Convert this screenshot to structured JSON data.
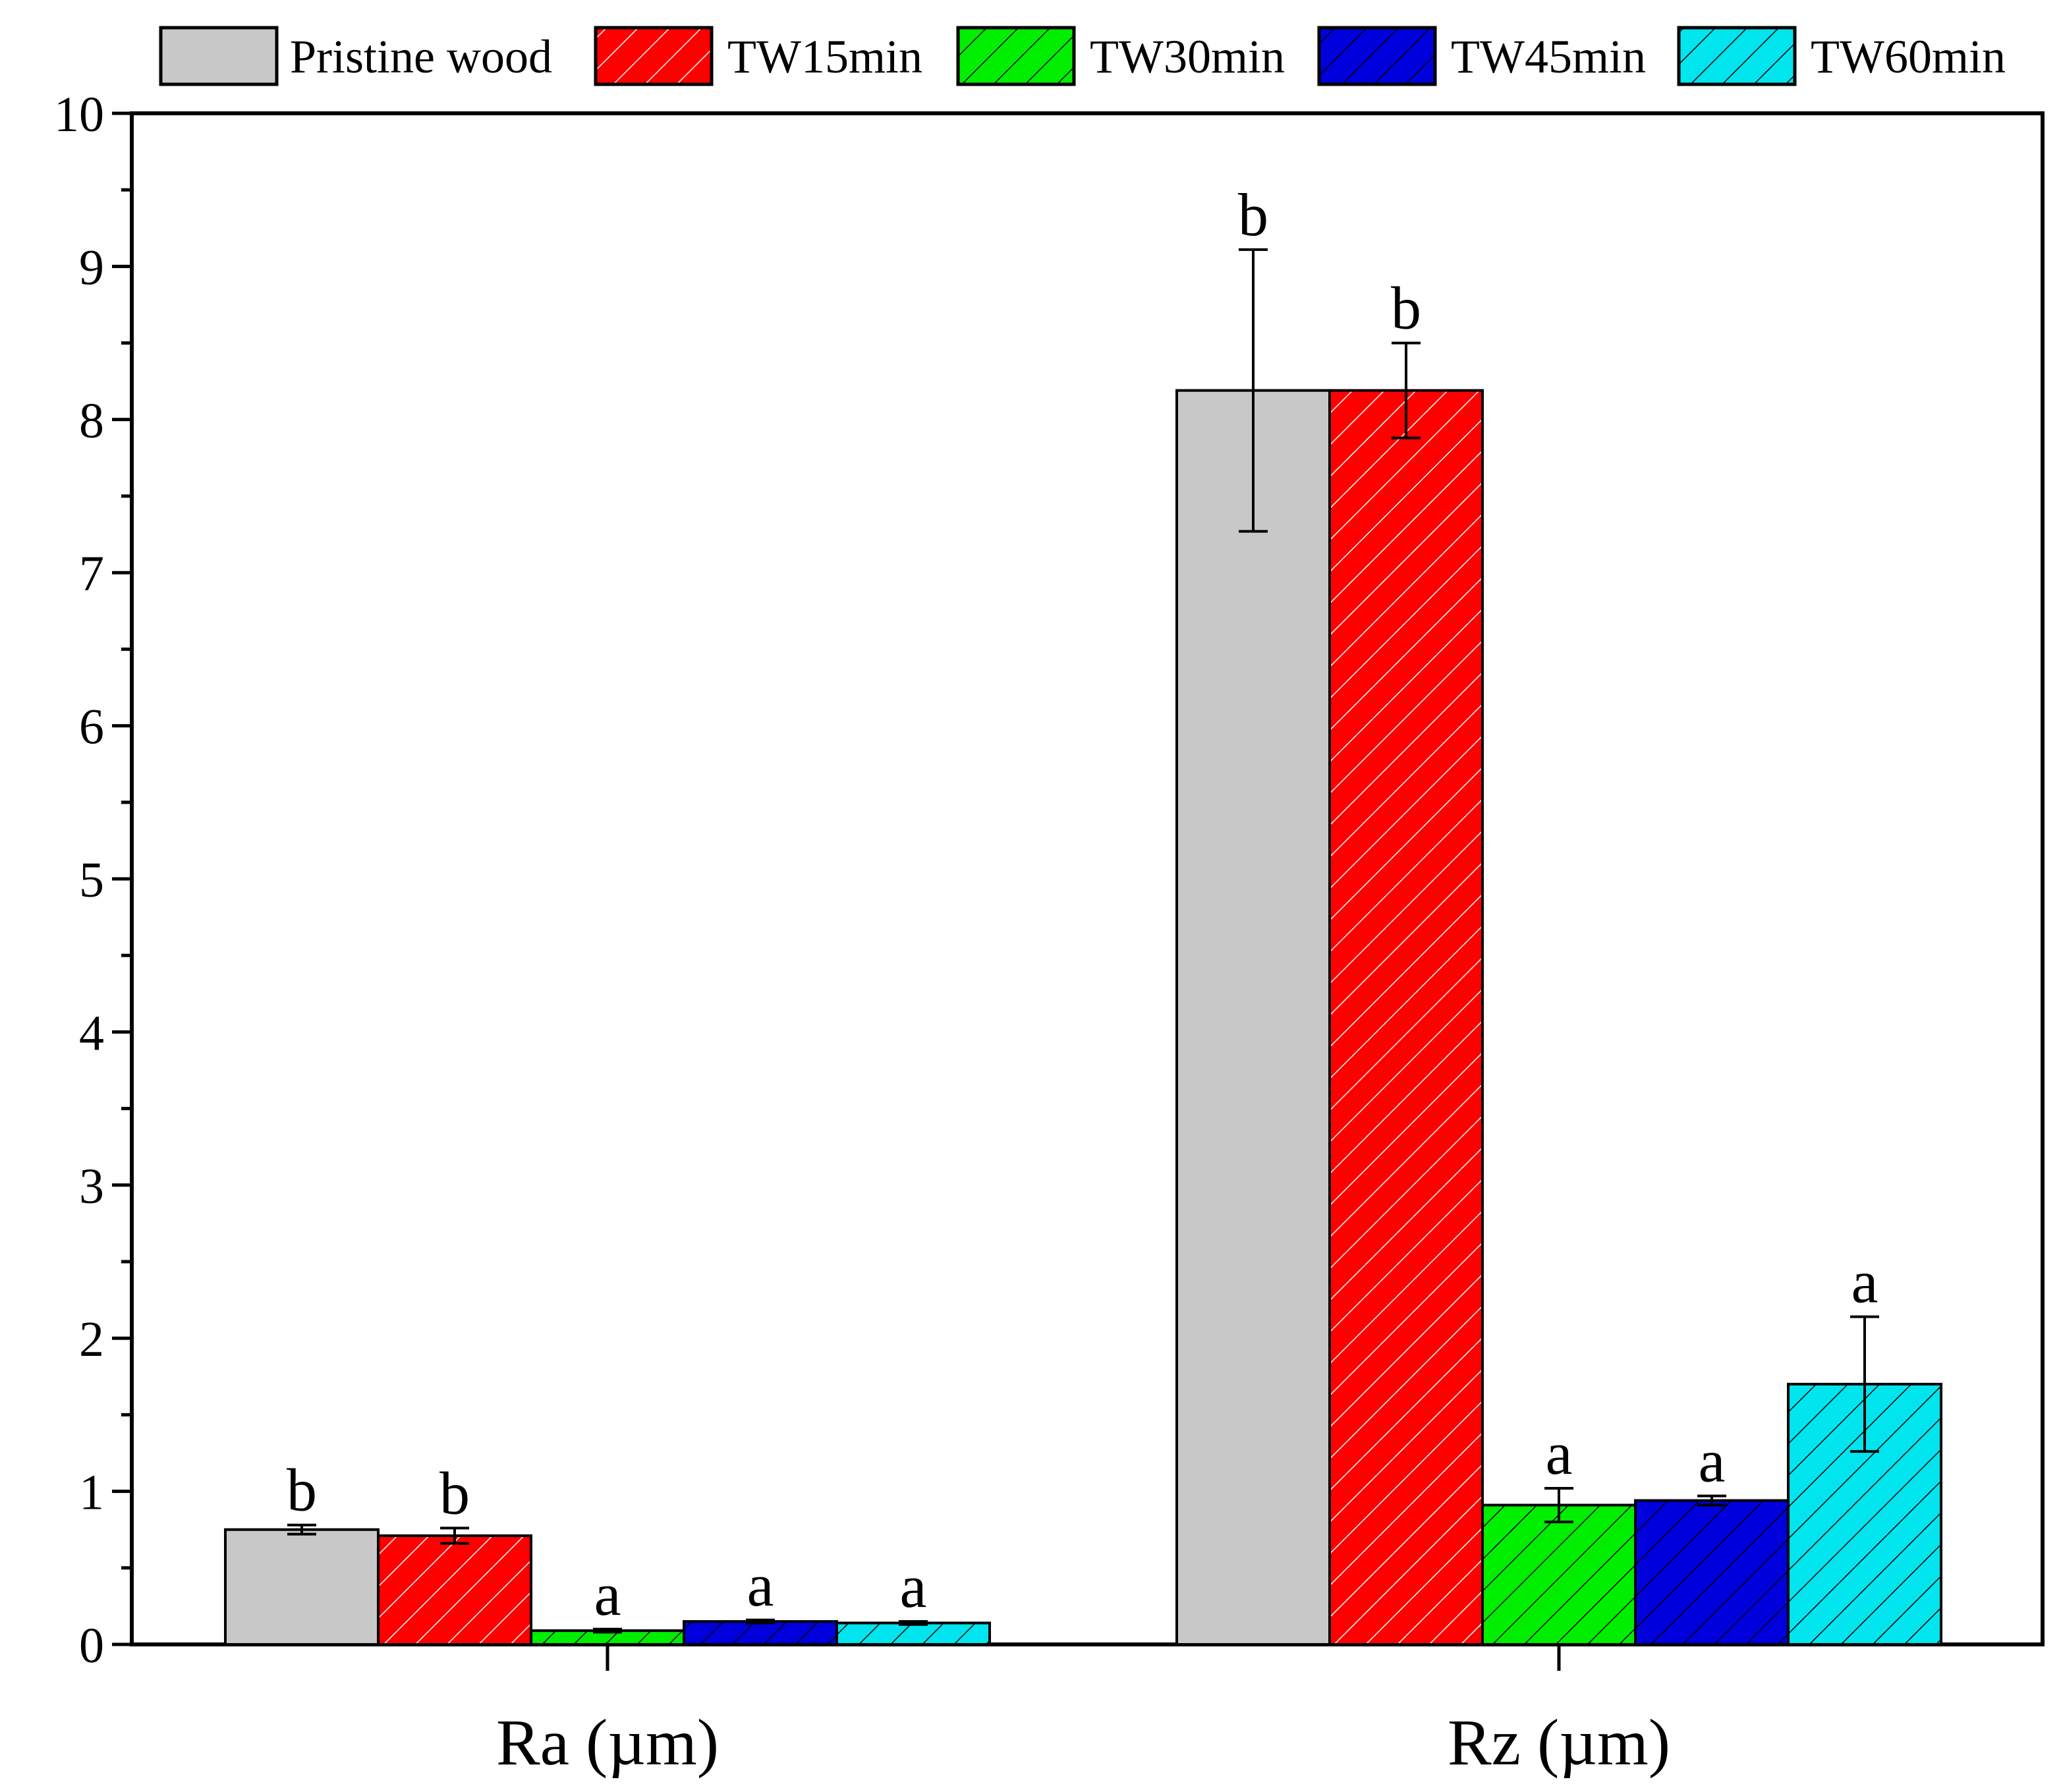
{
  "chart_data": {
    "type": "bar",
    "title": "",
    "xlabel": "",
    "ylabel": "",
    "ylim": [
      0,
      10
    ],
    "yticks": [
      "0",
      "1",
      "2",
      "3",
      "4",
      "5",
      "6",
      "7",
      "8",
      "9",
      "10"
    ],
    "categories": [
      "Ra (µm)",
      "Rz (µm)"
    ],
    "legend_position": "top",
    "series": [
      {
        "name": "Pristine wood",
        "color": "#c8c8c8",
        "pattern": "none",
        "values": [
          0.75,
          8.19
        ],
        "errors": [
          0.03,
          0.92
        ],
        "significance": [
          "b",
          "b"
        ]
      },
      {
        "name": "TW15min",
        "color": "#ff0000",
        "pattern": "hatch",
        "values": [
          0.71,
          8.19
        ],
        "errors": [
          0.05,
          0.31
        ],
        "significance": [
          "b",
          "b"
        ]
      },
      {
        "name": "TW30min",
        "color": "#00ee00",
        "pattern": "hatch",
        "values": [
          0.09,
          0.91
        ],
        "errors": [
          0.01,
          0.11
        ],
        "significance": [
          "a",
          "a"
        ]
      },
      {
        "name": "TW45min",
        "color": "#0000dd",
        "pattern": "hatch",
        "values": [
          0.15,
          0.94
        ],
        "errors": [
          0.01,
          0.03
        ],
        "significance": [
          "a",
          "a"
        ]
      },
      {
        "name": "TW60min",
        "color": "#00e5ee",
        "pattern": "hatch",
        "values": [
          0.14,
          1.7
        ],
        "errors": [
          0.01,
          0.44
        ],
        "significance": [
          "a",
          "a"
        ]
      }
    ]
  }
}
